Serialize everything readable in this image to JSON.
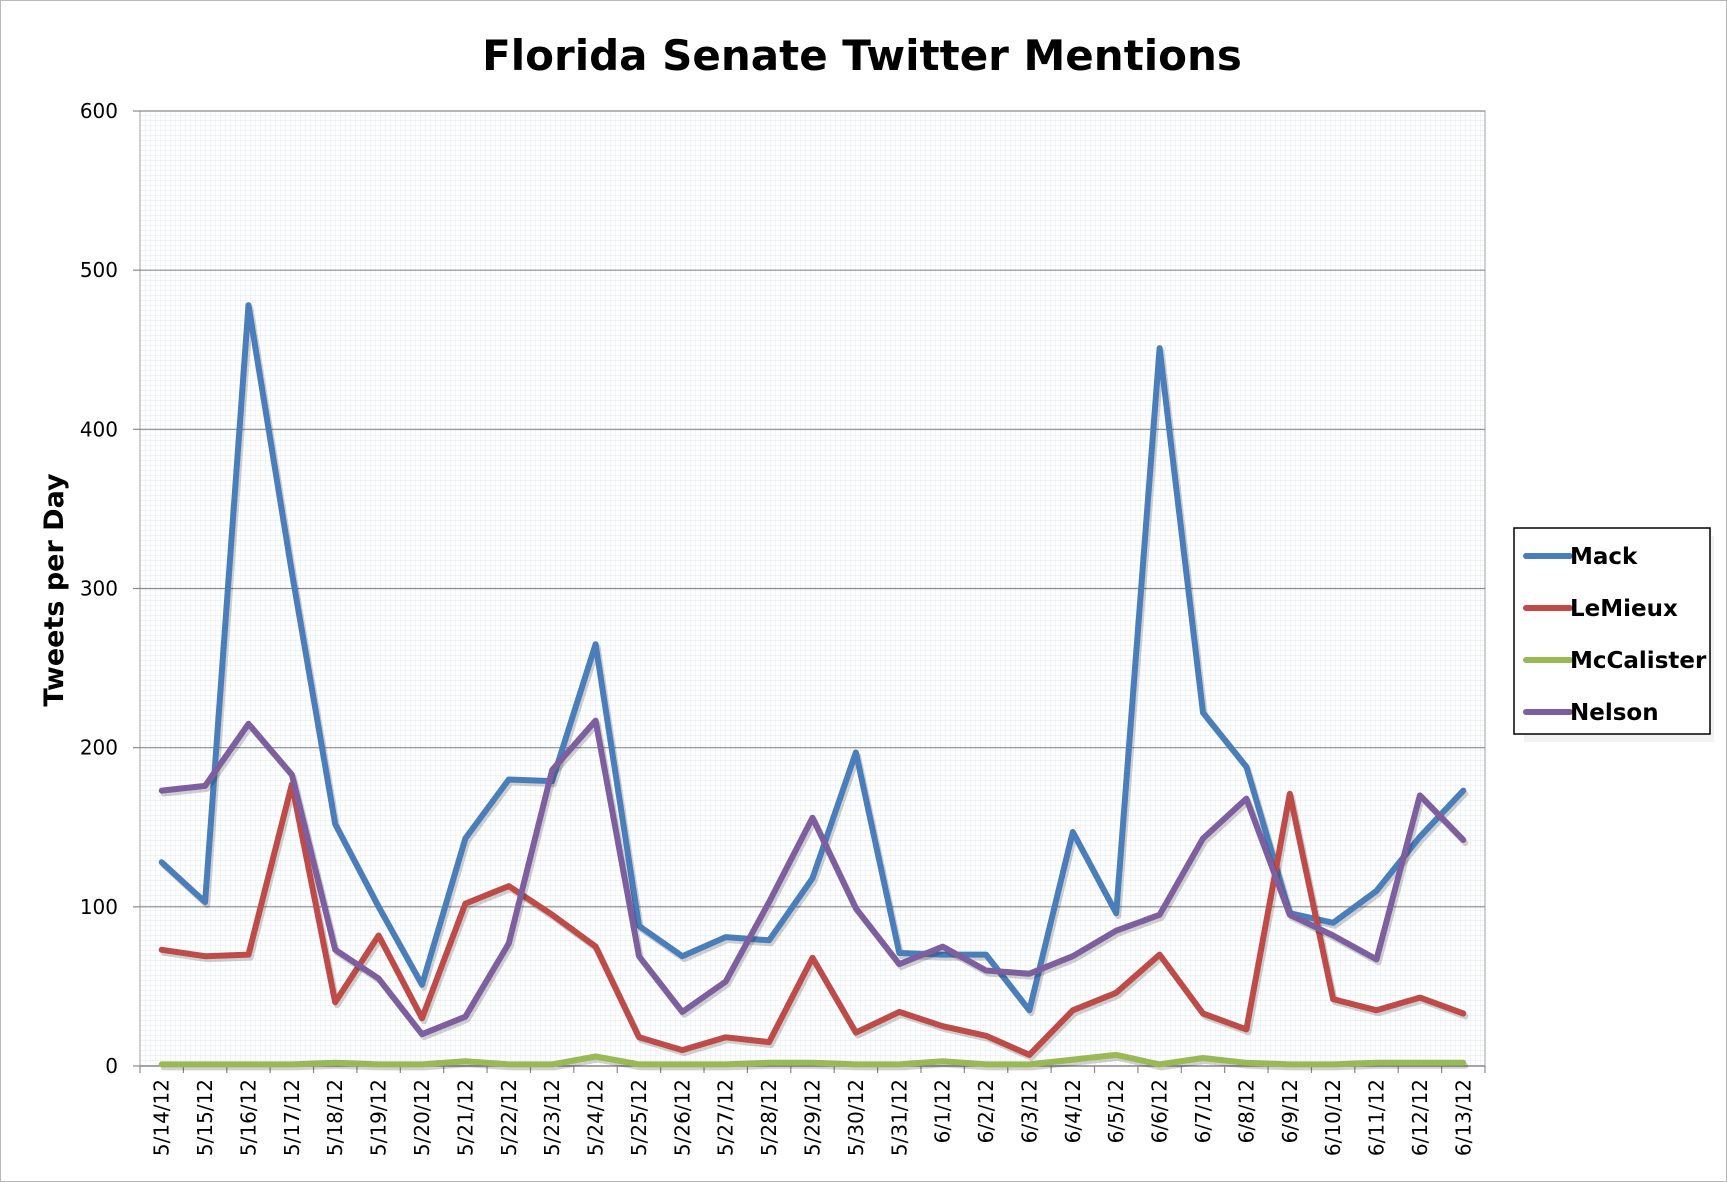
{
  "chart_data": {
    "type": "line",
    "title": "Florida Senate Twitter Mentions",
    "xlabel": "",
    "ylabel": "Tweets per Day",
    "ylim": [
      0,
      600
    ],
    "yticks": [
      "0",
      "100",
      "200",
      "300",
      "400",
      "500",
      "600"
    ],
    "grid": true,
    "legend_position": "right",
    "categories": [
      "5/14/12",
      "5/15/12",
      "5/16/12",
      "5/17/12",
      "5/18/12",
      "5/19/12",
      "5/20/12",
      "5/21/12",
      "5/22/12",
      "5/23/12",
      "5/24/12",
      "5/25/12",
      "5/26/12",
      "5/27/12",
      "5/28/12",
      "5/29/12",
      "5/30/12",
      "5/31/12",
      "6/1/12",
      "6/2/12",
      "6/3/12",
      "6/4/12",
      "6/5/12",
      "6/6/12",
      "6/7/12",
      "6/8/12",
      "6/9/12",
      "6/10/12",
      "6/11/12",
      "6/12/12",
      "6/13/12"
    ],
    "series": [
      {
        "name": "Mack",
        "color": "#4a7ebb",
        "values": [
          128,
          103,
          478,
          310,
          152,
          100,
          51,
          143,
          180,
          179,
          265,
          88,
          69,
          81,
          79,
          118,
          197,
          71,
          70,
          70,
          35,
          147,
          96,
          451,
          222,
          188,
          96,
          90,
          110,
          144,
          173
        ]
      },
      {
        "name": "LeMieux",
        "color": "#be4b48",
        "values": [
          73,
          69,
          70,
          177,
          40,
          82,
          30,
          102,
          113,
          95,
          75,
          18,
          10,
          18,
          15,
          68,
          21,
          34,
          25,
          19,
          7,
          35,
          46,
          70,
          33,
          23,
          171,
          42,
          35,
          43,
          33
        ]
      },
      {
        "name": "McCalister",
        "color": "#98b954",
        "values": [
          1,
          1,
          1,
          1,
          2,
          1,
          1,
          3,
          1,
          1,
          6,
          1,
          1,
          1,
          2,
          2,
          1,
          1,
          3,
          1,
          1,
          4,
          7,
          1,
          5,
          2,
          1,
          1,
          2,
          2,
          2
        ]
      },
      {
        "name": "Nelson",
        "color": "#7d5fa0",
        "values": [
          173,
          176,
          215,
          183,
          73,
          55,
          20,
          31,
          77,
          186,
          217,
          69,
          34,
          53,
          103,
          156,
          99,
          64,
          75,
          60,
          58,
          69,
          85,
          95,
          143,
          168,
          95,
          82,
          67,
          170,
          142
        ]
      }
    ]
  }
}
